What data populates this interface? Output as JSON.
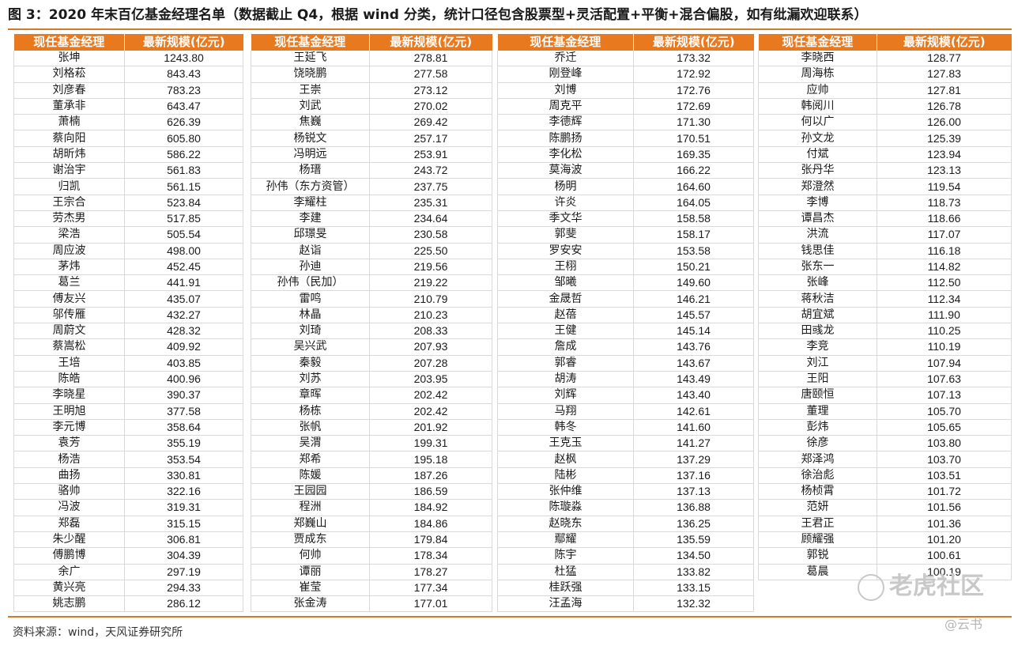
{
  "title": "图 3：2020 年末百亿基金经理名单（数据截止 Q4，根据 wind 分类，统计口径包含股票型+灵活配置+平衡+混合偏股，如有纰漏欢迎联系）",
  "header": {
    "name": "现任基金经理",
    "size": "最新规模(亿元)"
  },
  "columns": [
    [
      [
        "张坤",
        "1243.80"
      ],
      [
        "刘格菘",
        "843.43"
      ],
      [
        "刘彦春",
        "783.23"
      ],
      [
        "董承非",
        "643.47"
      ],
      [
        "萧楠",
        "626.39"
      ],
      [
        "蔡向阳",
        "605.80"
      ],
      [
        "胡昕炜",
        "586.22"
      ],
      [
        "谢治宇",
        "561.83"
      ],
      [
        "归凯",
        "561.15"
      ],
      [
        "王宗合",
        "523.84"
      ],
      [
        "劳杰男",
        "517.85"
      ],
      [
        "梁浩",
        "505.54"
      ],
      [
        "周应波",
        "498.00"
      ],
      [
        "茅炜",
        "452.45"
      ],
      [
        "葛兰",
        "441.91"
      ],
      [
        "傅友兴",
        "435.07"
      ],
      [
        "邬传雁",
        "432.27"
      ],
      [
        "周蔚文",
        "428.32"
      ],
      [
        "蔡嵩松",
        "409.92"
      ],
      [
        "王培",
        "403.85"
      ],
      [
        "陈皓",
        "400.96"
      ],
      [
        "李晓星",
        "390.37"
      ],
      [
        "王明旭",
        "377.58"
      ],
      [
        "李元博",
        "358.64"
      ],
      [
        "袁芳",
        "355.19"
      ],
      [
        "杨浩",
        "353.54"
      ],
      [
        "曲扬",
        "330.81"
      ],
      [
        "骆帅",
        "322.16"
      ],
      [
        "冯波",
        "319.31"
      ],
      [
        "郑磊",
        "315.15"
      ],
      [
        "朱少醒",
        "306.81"
      ],
      [
        "傅鹏博",
        "304.39"
      ],
      [
        "余广",
        "297.19"
      ],
      [
        "黄兴亮",
        "294.33"
      ],
      [
        "姚志鹏",
        "286.12"
      ]
    ],
    [
      [
        "王延飞",
        "278.81"
      ],
      [
        "饶晓鹏",
        "277.58"
      ],
      [
        "王崇",
        "273.12"
      ],
      [
        "刘武",
        "270.02"
      ],
      [
        "焦巍",
        "269.42"
      ],
      [
        "杨锐文",
        "257.17"
      ],
      [
        "冯明远",
        "253.91"
      ],
      [
        "杨瑨",
        "243.72"
      ],
      [
        "孙伟（东方资管）",
        "237.75"
      ],
      [
        "李耀柱",
        "235.31"
      ],
      [
        "李建",
        "234.64"
      ],
      [
        "邱璟旻",
        "230.58"
      ],
      [
        "赵诣",
        "225.50"
      ],
      [
        "孙迪",
        "219.56"
      ],
      [
        "孙伟（民加）",
        "219.22"
      ],
      [
        "雷鸣",
        "210.79"
      ],
      [
        "林晶",
        "210.23"
      ],
      [
        "刘琦",
        "208.33"
      ],
      [
        "吴兴武",
        "207.93"
      ],
      [
        "秦毅",
        "207.28"
      ],
      [
        "刘苏",
        "203.95"
      ],
      [
        "章晖",
        "202.42"
      ],
      [
        "杨栋",
        "202.42"
      ],
      [
        "张帆",
        "201.92"
      ],
      [
        "吴渭",
        "199.31"
      ],
      [
        "郑希",
        "195.18"
      ],
      [
        "陈媛",
        "187.26"
      ],
      [
        "王园园",
        "186.59"
      ],
      [
        "程洲",
        "184.92"
      ],
      [
        "郑巍山",
        "184.86"
      ],
      [
        "贾成东",
        "179.84"
      ],
      [
        "何帅",
        "178.34"
      ],
      [
        "谭丽",
        "178.27"
      ],
      [
        "崔莹",
        "177.34"
      ],
      [
        "张金涛",
        "177.01"
      ]
    ],
    [
      [
        "乔迁",
        "173.32"
      ],
      [
        "刚登峰",
        "172.92"
      ],
      [
        "刘博",
        "172.76"
      ],
      [
        "周克平",
        "172.69"
      ],
      [
        "李德辉",
        "171.30"
      ],
      [
        "陈鹏扬",
        "170.51"
      ],
      [
        "李化松",
        "169.35"
      ],
      [
        "莫海波",
        "166.22"
      ],
      [
        "杨明",
        "164.60"
      ],
      [
        "许炎",
        "164.05"
      ],
      [
        "季文华",
        "158.58"
      ],
      [
        "郭斐",
        "158.17"
      ],
      [
        "罗安安",
        "153.58"
      ],
      [
        "王栩",
        "150.21"
      ],
      [
        "邹曦",
        "149.60"
      ],
      [
        "金晟哲",
        "146.21"
      ],
      [
        "赵蓓",
        "145.57"
      ],
      [
        "王健",
        "145.14"
      ],
      [
        "詹成",
        "143.76"
      ],
      [
        "郭睿",
        "143.67"
      ],
      [
        "胡涛",
        "143.49"
      ],
      [
        "刘辉",
        "143.40"
      ],
      [
        "马翔",
        "142.61"
      ],
      [
        "韩冬",
        "141.60"
      ],
      [
        "王克玉",
        "141.27"
      ],
      [
        "赵枫",
        "137.29"
      ],
      [
        "陆彬",
        "137.16"
      ],
      [
        "张仲维",
        "137.13"
      ],
      [
        "陈璇淼",
        "136.88"
      ],
      [
        "赵晓东",
        "136.25"
      ],
      [
        "鄢耀",
        "135.59"
      ],
      [
        "陈宇",
        "134.50"
      ],
      [
        "杜猛",
        "133.82"
      ],
      [
        "桂跃强",
        "133.15"
      ],
      [
        "汪孟海",
        "132.32"
      ]
    ],
    [
      [
        "李晓西",
        "128.77"
      ],
      [
        "周海栋",
        "127.83"
      ],
      [
        "应帅",
        "127.81"
      ],
      [
        "韩阅川",
        "126.78"
      ],
      [
        "何以广",
        "126.00"
      ],
      [
        "孙文龙",
        "125.39"
      ],
      [
        "付斌",
        "123.94"
      ],
      [
        "张丹华",
        "123.13"
      ],
      [
        "郑澄然",
        "119.54"
      ],
      [
        "李博",
        "118.73"
      ],
      [
        "谭昌杰",
        "118.66"
      ],
      [
        "洪流",
        "117.07"
      ],
      [
        "钱思佳",
        "116.18"
      ],
      [
        "张东一",
        "114.82"
      ],
      [
        "张峰",
        "112.50"
      ],
      [
        "蒋秋洁",
        "112.34"
      ],
      [
        "胡宜斌",
        "111.90"
      ],
      [
        "田彧龙",
        "110.25"
      ],
      [
        "李竞",
        "110.19"
      ],
      [
        "刘江",
        "107.94"
      ],
      [
        "王阳",
        "107.63"
      ],
      [
        "唐颐恒",
        "107.13"
      ],
      [
        "董理",
        "105.70"
      ],
      [
        "彭炜",
        "105.65"
      ],
      [
        "徐彦",
        "103.80"
      ],
      [
        "郑泽鸿",
        "103.70"
      ],
      [
        "徐治彪",
        "103.51"
      ],
      [
        "杨桢霄",
        "101.72"
      ],
      [
        "范妍",
        "101.56"
      ],
      [
        "王君正",
        "101.36"
      ],
      [
        "顾耀强",
        "101.20"
      ],
      [
        "郭锐",
        "100.61"
      ],
      [
        "葛晨",
        "100.19"
      ]
    ]
  ],
  "source": "资料来源：wind，天风证券研究所",
  "watermark": {
    "main": "老虎社区",
    "sub": "@云书"
  }
}
